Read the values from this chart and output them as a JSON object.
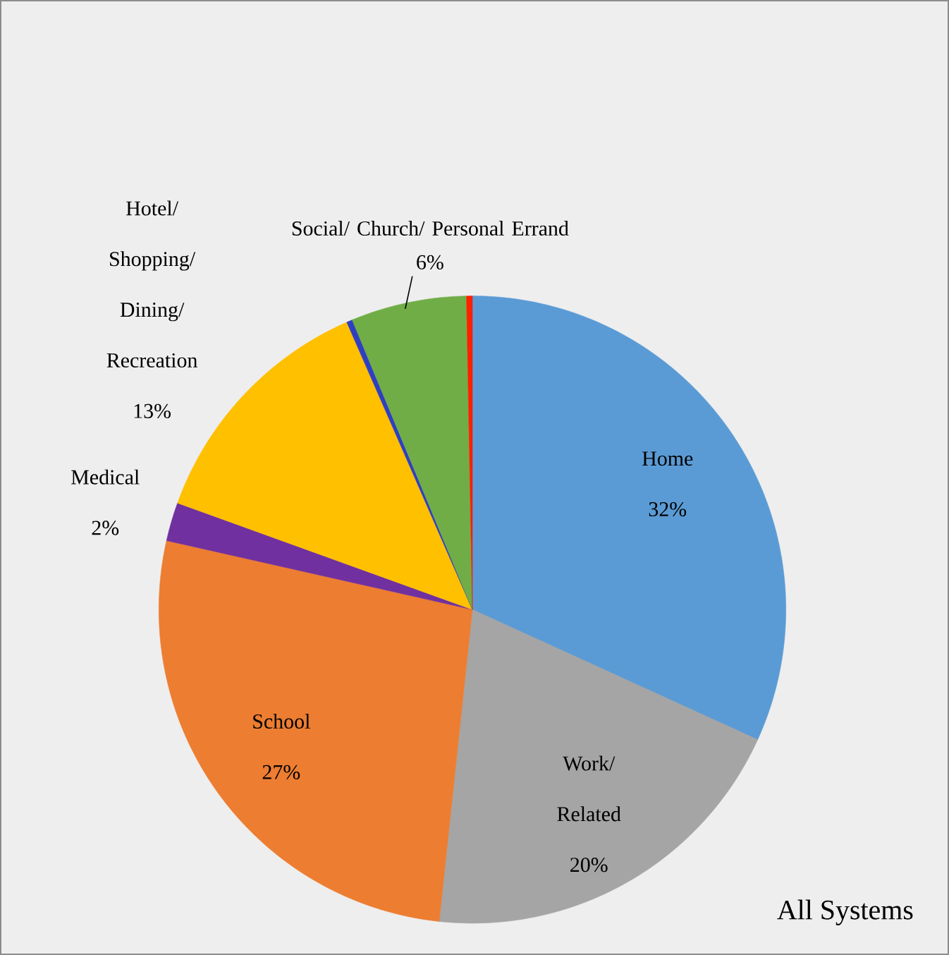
{
  "chart_data": {
    "type": "pie",
    "title": "All Systems",
    "categories": [
      "Home",
      "Work/ Related",
      "School",
      "Medical",
      "Hotel/ Shopping/ Dining/ Recreation",
      null,
      "Social/ Church/ Personal Errand",
      null
    ],
    "values": [
      32,
      20,
      27,
      2,
      13,
      0.3,
      6,
      0.3
    ],
    "value_labels": [
      "32%",
      "20%",
      "27%",
      "2%",
      "13%",
      null,
      "6%",
      null
    ],
    "colors": [
      "#5b9bd5",
      "#a5a5a5",
      "#ed7d31",
      "#7030a0",
      "#ffc000",
      "#2f3fc0",
      "#70ad47",
      "#ff2000"
    ],
    "legend": false
  }
}
